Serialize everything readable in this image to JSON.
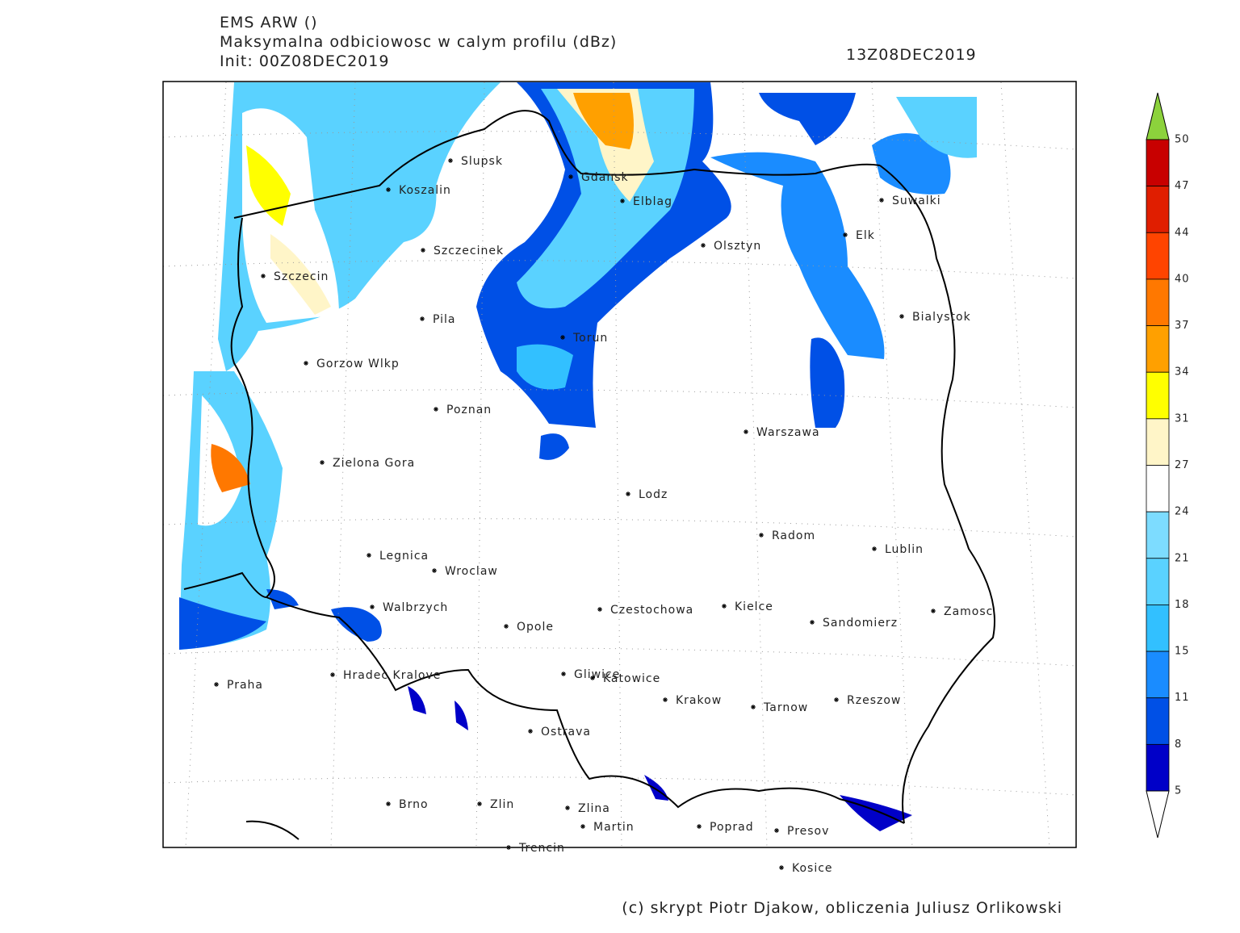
{
  "header": {
    "model": "EMS ARW ()",
    "title": "Maksymalna odbiciowosc w calym profilu (dBz)",
    "init": "Init: 00Z08DEC2019",
    "valid": "13Z08DEC2019"
  },
  "legend": {
    "ticks": [
      50,
      47,
      44,
      40,
      37,
      34,
      31,
      27,
      24,
      21,
      18,
      15,
      11,
      8,
      5
    ],
    "colors": [
      "#c80000",
      "#e01e00",
      "#ff4400",
      "#ff7800",
      "#ffa000",
      "#ffff00",
      "#fff5c8",
      "#ffffff",
      "#7ddcff",
      "#5ad2ff",
      "#32c0ff",
      "#1a8cff",
      "#0050e6",
      "#0000c8"
    ],
    "over_color": "#8cd23c",
    "under_color": "#ffffff"
  },
  "cities": [
    "Slupsk",
    "Koszalin",
    "Szczecinek",
    "Szczecin",
    "Pila",
    "Gorzow Wlkp",
    "Poznan",
    "Zielona Gora",
    "Legnica",
    "Wroclaw",
    "Walbrzych",
    "Opole",
    "Czestochowa",
    "Kielce",
    "Sandomierz",
    "Zamosc",
    "Lublin",
    "Radom",
    "Lodz",
    "Warszawa",
    "Bialystok",
    "Suwalki",
    "Elk",
    "Olsztyn",
    "Elblag",
    "Gdansk",
    "Torun",
    "Praha",
    "Hradec Kralove",
    "Gliwice",
    "Katowice",
    "Krakow",
    "Tarnow",
    "Rzeszow",
    "Ostrava",
    "Brno",
    "Zlin",
    "Zlina",
    "Martin",
    "Poprad",
    "Presov",
    "Trencin",
    "Kosice"
  ],
  "footer": "(c) skrypt Piotr Djakow, obliczenia Juliusz Orlikowski"
}
